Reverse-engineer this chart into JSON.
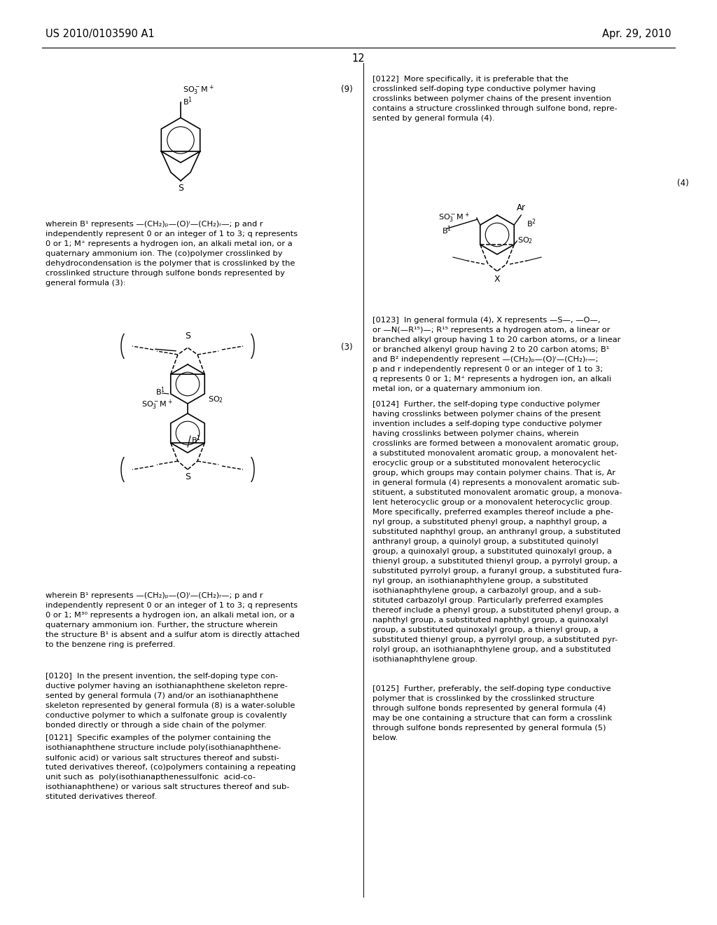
{
  "bg_color": "#ffffff",
  "header_left": "US 2010/0103590 A1",
  "header_right": "Apr. 29, 2010",
  "page_num": "12",
  "text_color": "#000000"
}
